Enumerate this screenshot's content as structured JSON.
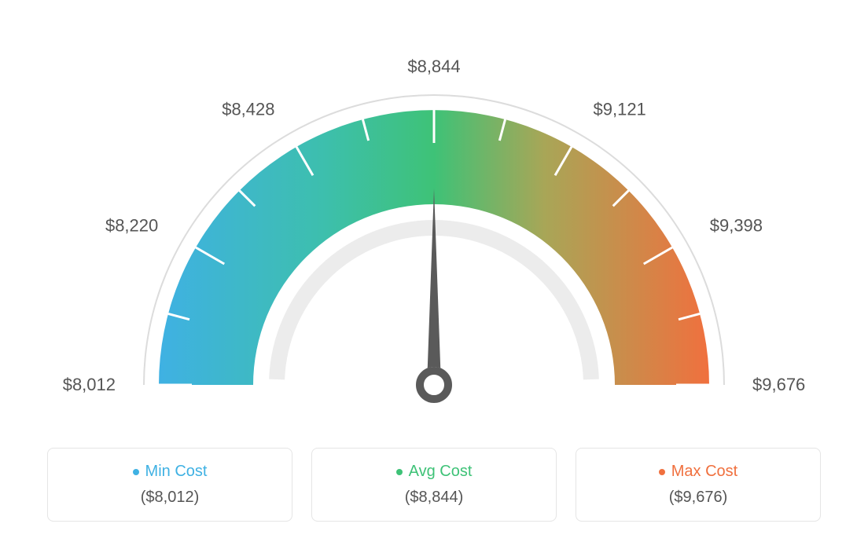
{
  "gauge": {
    "type": "gauge",
    "min_value": 8012,
    "max_value": 9676,
    "avg_value": 8844,
    "needle_value": 8844,
    "tick_labels": [
      "$8,012",
      "$8,220",
      "$8,428",
      "$8,844",
      "$9,121",
      "$9,398",
      "$9,676"
    ],
    "tick_angles_deg": [
      180,
      150,
      120,
      90,
      60,
      30,
      0
    ],
    "minor_tick_count_between": 1,
    "outer_radius": 370,
    "arc_outer_r": 350,
    "arc_inner_r": 230,
    "inner_ring_outer_r": 210,
    "inner_ring_inner_r": 190,
    "label_radius": 405,
    "colors": {
      "min": "#3fb1e3",
      "avg": "#3ec277",
      "max": "#f0703e",
      "blend_cyan_green": "#3dbfad",
      "blend_green_orange": "#a8a657",
      "outer_arc": "#dcdcdc",
      "inner_ring": "#ececec",
      "needle": "#5a5a5a",
      "tick": "#ffffff",
      "tick_label": "#555555",
      "background": "#ffffff"
    },
    "tick_stroke_width": 3,
    "major_tick_len": 42,
    "minor_tick_len": 28,
    "needle_base_radius": 18,
    "needle_ring_stroke": 10,
    "font": {
      "tick_label_size": 22,
      "legend_title_size": 20,
      "legend_value_size": 20
    }
  },
  "legend": {
    "min": {
      "label": "Min Cost",
      "value": "($8,012)",
      "color": "#3fb1e3"
    },
    "avg": {
      "label": "Avg Cost",
      "value": "($8,844)",
      "color": "#3ec277"
    },
    "max": {
      "label": "Max Cost",
      "value": "($9,676)",
      "color": "#f0703e"
    }
  }
}
